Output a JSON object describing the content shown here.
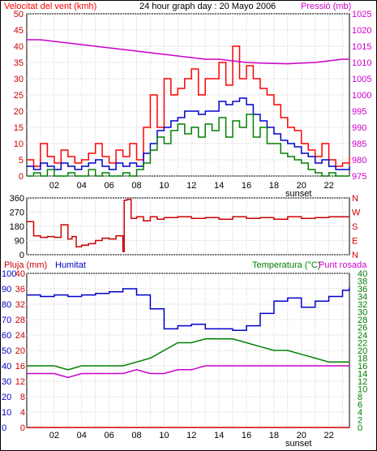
{
  "colors": {
    "frame": "#000000",
    "grid": "#c8c8c8",
    "wind_gust": "#ff0000",
    "wind_avg": "#0000cc",
    "wind_min": "#008000",
    "pressure": "#cc00cc",
    "direction": "#cc0000",
    "rain": "#cc0000",
    "humidity": "#0000cc",
    "temperature": "#008000",
    "dewpoint": "#cc00cc"
  },
  "header": {
    "wind_label": "Velocitat del vent (kmh)",
    "title": "24 hour graph day : 20 Mayo 2006",
    "pressure_label": "Pressió (mb)"
  },
  "bottom_header": {
    "rain_label": "Pluja (mm)",
    "humidity_label": "Humitat",
    "temp_label": "Temperatura (°C)",
    "dew_label": "Punt rosada"
  },
  "x_ticks": [
    "02",
    "04",
    "06",
    "08",
    "10",
    "12",
    "14",
    "16",
    "18",
    "20",
    "22"
  ],
  "sunset_label": "sunset",
  "chart_data": [
    {
      "type": "line",
      "name": "wind_and_pressure",
      "x_unit": "hour",
      "xlim": [
        0,
        23.5
      ],
      "left_axis": {
        "ticks": [
          0,
          5,
          10,
          15,
          20,
          25,
          30,
          35,
          40,
          45,
          50
        ],
        "ylim": [
          0,
          50
        ]
      },
      "right_axis": {
        "ticks": [
          975,
          980,
          985,
          990,
          995,
          1000,
          1005,
          1010,
          1015,
          1020,
          1025
        ],
        "ylim": [
          975,
          1025
        ]
      },
      "series": [
        {
          "key": "wind_gust",
          "axis": "left",
          "x": [
            0,
            0.5,
            1,
            1.5,
            2,
            2.5,
            3,
            3.5,
            4,
            4.5,
            5,
            5.5,
            6,
            6.5,
            7,
            7.5,
            8,
            8.5,
            9,
            9.5,
            10,
            10.5,
            11,
            11.5,
            12,
            12.5,
            13,
            13.5,
            14,
            14.5,
            15,
            15.5,
            16,
            16.5,
            17,
            17.5,
            18,
            18.5,
            19,
            19.5,
            20,
            20.5,
            21,
            21.5,
            22,
            22.5,
            23,
            23.5
          ],
          "y": [
            5,
            3,
            10,
            6,
            4,
            8,
            6,
            4,
            5,
            7,
            10,
            6,
            4,
            8,
            6,
            10,
            5,
            15,
            25,
            15,
            30,
            25,
            27,
            30,
            33,
            25,
            30,
            30,
            35,
            28,
            40,
            30,
            34,
            30,
            27,
            25,
            22,
            18,
            15,
            14,
            10,
            8,
            6,
            10,
            5,
            3,
            4,
            6
          ]
        },
        {
          "key": "wind_avg",
          "axis": "left",
          "x": [
            0,
            0.5,
            1,
            1.5,
            2,
            2.5,
            3,
            3.5,
            4,
            4.5,
            5,
            5.5,
            6,
            6.5,
            7,
            7.5,
            8,
            8.5,
            9,
            9.5,
            10,
            10.5,
            11,
            11.5,
            12,
            12.5,
            13,
            13.5,
            14,
            14.5,
            15,
            15.5,
            16,
            16.5,
            17,
            17.5,
            18,
            18.5,
            19,
            19.5,
            20,
            20.5,
            21,
            21.5,
            22,
            22.5,
            23,
            23.5
          ],
          "y": [
            3,
            2,
            4,
            3,
            2,
            4,
            3,
            2,
            3,
            4,
            5,
            3,
            2,
            4,
            3,
            4,
            3,
            7,
            10,
            14,
            15,
            17,
            18,
            20,
            20,
            19,
            20,
            20,
            23,
            22,
            23,
            24,
            22,
            19,
            17,
            15,
            13,
            11,
            10,
            9,
            7,
            6,
            4,
            5,
            3,
            2,
            2,
            3
          ]
        },
        {
          "key": "wind_min",
          "axis": "left",
          "x": [
            0,
            0.5,
            1,
            1.5,
            2,
            2.5,
            3,
            3.5,
            4,
            4.5,
            5,
            5.5,
            6,
            6.5,
            7,
            7.5,
            8,
            8.5,
            9,
            9.5,
            10,
            10.5,
            11,
            11.5,
            12,
            12.5,
            13,
            13.5,
            14,
            14.5,
            15,
            15.5,
            16,
            16.5,
            17,
            17.5,
            18,
            18.5,
            19,
            19.5,
            20,
            20.5,
            21,
            21.5,
            22,
            22.5,
            23,
            23.5
          ],
          "y": [
            0,
            1,
            0,
            2,
            0,
            0,
            1,
            0,
            0,
            2,
            0,
            1,
            0,
            0,
            1,
            0,
            2,
            4,
            8,
            12,
            10,
            14,
            16,
            13,
            15,
            12,
            16,
            14,
            18,
            12,
            17,
            15,
            19,
            12,
            15,
            10,
            10,
            7,
            6,
            5,
            4,
            2,
            1,
            0,
            1,
            0,
            0,
            0
          ]
        },
        {
          "key": "pressure",
          "axis": "right",
          "x": [
            0,
            1,
            2,
            3,
            4,
            5,
            6,
            7,
            8,
            9,
            10,
            11,
            12,
            13,
            14,
            15,
            16,
            17,
            18,
            19,
            20,
            21,
            22,
            23,
            23.5
          ],
          "y": [
            1017,
            1017,
            1016.5,
            1016,
            1015.5,
            1015,
            1014.5,
            1014,
            1013.5,
            1013,
            1012.5,
            1012,
            1011.5,
            1011,
            1011,
            1010.5,
            1010,
            1009.8,
            1009.7,
            1009.6,
            1009.8,
            1010,
            1010.5,
            1011,
            1011
          ]
        }
      ]
    },
    {
      "type": "line",
      "name": "wind_direction",
      "x_unit": "hour",
      "xlim": [
        0,
        23.5
      ],
      "left_axis": {
        "ticks": [
          0,
          90,
          180,
          270,
          360
        ],
        "ylim": [
          0,
          360
        ]
      },
      "right_axis_labels": [
        "N",
        "W",
        "S",
        "E",
        "N"
      ],
      "series": [
        {
          "key": "direction",
          "axis": "left",
          "x": [
            0,
            0.5,
            1,
            1.5,
            2,
            2.5,
            3,
            3.3,
            3.6,
            4,
            4.5,
            5,
            5.5,
            6,
            6.5,
            7,
            7.1,
            7.3,
            7.6,
            8,
            8.5,
            9,
            9.5,
            10,
            11,
            12,
            13,
            14,
            15,
            16,
            17,
            18,
            19,
            20,
            21,
            22,
            23,
            23.5
          ],
          "y": [
            210,
            120,
            110,
            115,
            110,
            190,
            100,
            115,
            50,
            60,
            70,
            90,
            105,
            100,
            120,
            20,
            345,
            350,
            230,
            240,
            215,
            240,
            225,
            235,
            240,
            230,
            235,
            225,
            240,
            230,
            235,
            225,
            240,
            230,
            235,
            240,
            240,
            240
          ]
        }
      ]
    },
    {
      "type": "line",
      "name": "rain_humidity_temperature",
      "x_unit": "hour",
      "xlim": [
        0,
        23.5
      ],
      "left_axis": {
        "ticks": [
          0,
          4,
          8,
          12,
          16,
          20,
          24,
          28,
          32,
          36,
          40
        ],
        "ylim": [
          0,
          40
        ],
        "title": "Pluja (mm)"
      },
      "left_axis2": {
        "ticks": [
          0,
          10,
          20,
          30,
          40,
          50,
          60,
          70,
          80,
          90,
          100
        ],
        "ylim": [
          0,
          100
        ],
        "title": "Humitat"
      },
      "right_axis": {
        "ticks": [
          0,
          2,
          4,
          6,
          8,
          10,
          12,
          14,
          16,
          18,
          20,
          22,
          24,
          26,
          28,
          30,
          32,
          34,
          36,
          38,
          40
        ],
        "ylim": [
          0,
          40
        ],
        "title": "Temperatura (°C)"
      },
      "series": [
        {
          "key": "rain",
          "axis": "left",
          "x": [
            0,
            23.5
          ],
          "y": [
            0,
            0
          ]
        },
        {
          "key": "humidity",
          "axis": "left2",
          "x": [
            0,
            1,
            2,
            3,
            4,
            5,
            6,
            7,
            8,
            9,
            10,
            11,
            12,
            13,
            14,
            15,
            16,
            17,
            18,
            19,
            20,
            21,
            22,
            23,
            23.5
          ],
          "y": [
            86,
            85,
            86,
            85,
            86,
            87,
            88,
            90,
            86,
            77,
            64,
            66,
            67,
            64,
            64,
            63,
            66,
            74,
            82,
            84,
            78,
            82,
            85,
            89,
            91
          ]
        },
        {
          "key": "temperature",
          "axis": "right",
          "x": [
            0,
            1,
            2,
            3,
            4,
            5,
            6,
            7,
            8,
            9,
            10,
            11,
            12,
            13,
            14,
            15,
            16,
            17,
            18,
            19,
            20,
            21,
            22,
            23,
            23.5
          ],
          "y": [
            16,
            16,
            16,
            15,
            16,
            16,
            16,
            16,
            17,
            18,
            20,
            22,
            22,
            23,
            23,
            23,
            22,
            21,
            20,
            20,
            19,
            18,
            17,
            17,
            17
          ]
        },
        {
          "key": "dewpoint",
          "axis": "right",
          "x": [
            0,
            1,
            2,
            3,
            4,
            5,
            6,
            7,
            8,
            9,
            10,
            11,
            12,
            13,
            14,
            15,
            16,
            17,
            18,
            19,
            20,
            21,
            22,
            23,
            23.5
          ],
          "y": [
            14,
            14,
            14,
            13,
            14,
            14,
            14,
            14,
            15,
            14,
            14,
            15,
            15,
            16,
            16,
            16,
            16,
            16,
            16,
            16,
            16,
            16,
            16,
            16,
            16
          ]
        }
      ]
    }
  ]
}
